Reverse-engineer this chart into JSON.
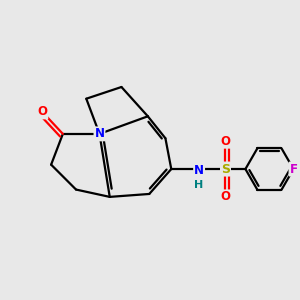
{
  "background_color": "#e8e8e8",
  "bond_color": "#000000",
  "atom_colors": {
    "N": "#0000ff",
    "O": "#ff0000",
    "F": "#cc00cc",
    "S": "#aaaa00",
    "NH_N": "#0000ff",
    "NH_H": "#008080",
    "C": "#000000"
  },
  "figsize": [
    3.0,
    3.0
  ],
  "dpi": 100
}
